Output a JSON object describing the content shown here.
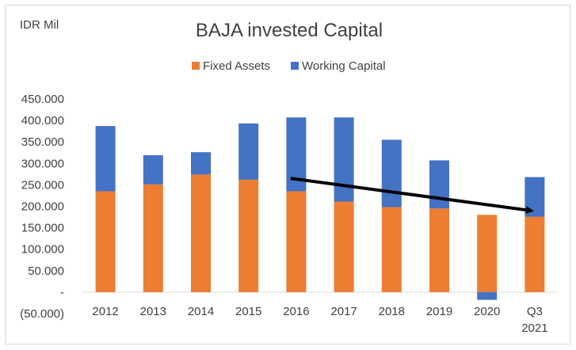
{
  "chart_data": {
    "type": "bar",
    "stacked": true,
    "title": "BAJA invested Capital",
    "unit_label": "IDR Mil",
    "categories": [
      {
        "line1": "2012",
        "line2": ""
      },
      {
        "line1": "2013",
        "line2": ""
      },
      {
        "line1": "2014",
        "line2": ""
      },
      {
        "line1": "2015",
        "line2": ""
      },
      {
        "line1": "2016",
        "line2": ""
      },
      {
        "line1": "2017",
        "line2": ""
      },
      {
        "line1": "2018",
        "line2": ""
      },
      {
        "line1": "2019",
        "line2": ""
      },
      {
        "line1": "2020",
        "line2": ""
      },
      {
        "line1": "Q3",
        "line2": "2021"
      }
    ],
    "series": [
      {
        "name": "Fixed Assets",
        "color": "#ED7D31",
        "values": [
          235000,
          251000,
          274000,
          262000,
          235000,
          211000,
          198000,
          195000,
          180000,
          176000
        ]
      },
      {
        "name": "Working Capital",
        "color": "#4472C4",
        "values": [
          152000,
          68000,
          52000,
          131000,
          172000,
          196000,
          157000,
          112000,
          -18000,
          92000
        ]
      }
    ],
    "y_ticks": [
      {
        "value": 450000,
        "label": "450.000"
      },
      {
        "value": 400000,
        "label": "400.000"
      },
      {
        "value": 350000,
        "label": "350.000"
      },
      {
        "value": 300000,
        "label": "300.000"
      },
      {
        "value": 250000,
        "label": "250.000"
      },
      {
        "value": 200000,
        "label": "200.000"
      },
      {
        "value": 150000,
        "label": "150.000"
      },
      {
        "value": 100000,
        "label": "100.000"
      },
      {
        "value": 50000,
        "label": "50.000"
      },
      {
        "value": 0,
        "label": "-"
      },
      {
        "value": -50000,
        "label": "(50.000)"
      }
    ],
    "ylim": [
      -50000,
      450000
    ],
    "grid": false,
    "legend_position": "top-center",
    "annotation": {
      "type": "arrow",
      "color": "#000000",
      "from": {
        "category": "2016",
        "value": 265000
      },
      "to": {
        "category": "Q3 2021",
        "value": 190000
      }
    }
  }
}
